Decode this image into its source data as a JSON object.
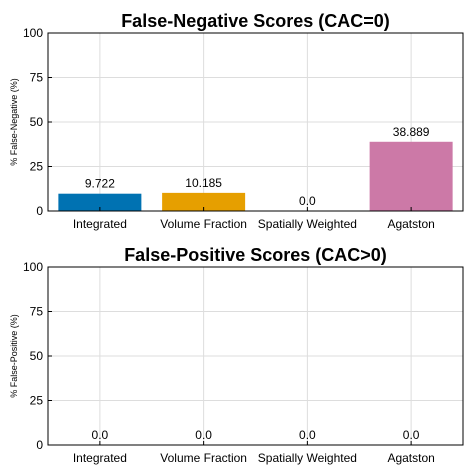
{
  "chart_data": [
    {
      "type": "bar",
      "title": "False-Negative Scores (CAC=0)",
      "ylabel": "% False-Negative (%)",
      "xlabel": "",
      "categories": [
        "Integrated",
        "Volume Fraction",
        "Spatially Weighted",
        "Agatston"
      ],
      "values": [
        9.722,
        10.185,
        0.0,
        38.889
      ],
      "value_labels": [
        "9.722",
        "10.185",
        "0.0",
        "38.889"
      ],
      "colors": [
        "#0072b2",
        "#e69f00",
        "#009e73",
        "#cc79a7"
      ],
      "ylim": [
        0,
        100
      ],
      "yticks": [
        "0",
        "25",
        "50",
        "75",
        "100"
      ],
      "grid": true
    },
    {
      "type": "bar",
      "title": "False-Positive Scores (CAC>0)",
      "ylabel": "% False-Positive (%)",
      "xlabel": "",
      "categories": [
        "Integrated",
        "Volume Fraction",
        "Spatially Weighted",
        "Agatston"
      ],
      "values": [
        0.0,
        0.0,
        0.0,
        0.0
      ],
      "value_labels": [
        "0.0",
        "0.0",
        "0.0",
        "0.0"
      ],
      "colors": [
        "#0072b2",
        "#e69f00",
        "#009e73",
        "#cc79a7"
      ],
      "ylim": [
        0,
        100
      ],
      "yticks": [
        "0",
        "25",
        "50",
        "75",
        "100"
      ],
      "grid": true
    }
  ]
}
